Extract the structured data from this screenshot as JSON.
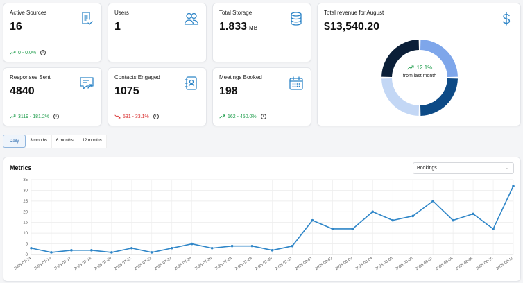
{
  "stats": [
    {
      "title": "Active Sources",
      "value": "16",
      "unit": "",
      "trend": "0 - 0.0%",
      "direction": "up",
      "icon": "form-check-icon"
    },
    {
      "title": "Users",
      "value": "1",
      "unit": "",
      "trend": "",
      "direction": "",
      "icon": "users-icon"
    },
    {
      "title": "Total Storage",
      "value": "1.833",
      "unit": "MB",
      "trend": "",
      "direction": "",
      "icon": "database-icon"
    },
    {
      "title": "Responses Sent",
      "value": "4840",
      "unit": "",
      "trend": "3119 - 181.2%",
      "direction": "up",
      "icon": "message-reply-icon"
    },
    {
      "title": "Contacts Engaged",
      "value": "1075",
      "unit": "",
      "trend": "531 - 33.1%",
      "direction": "down",
      "icon": "contact-book-icon"
    },
    {
      "title": "Meetings Booked",
      "value": "198",
      "unit": "",
      "trend": "162 - 450.0%",
      "direction": "up",
      "icon": "calendar-icon"
    }
  ],
  "revenue": {
    "title": "Total revenue for August",
    "value": "$13,540.20",
    "change": "12.1%",
    "change_label": "from last month",
    "icon": "dollar-icon",
    "segments": [
      {
        "fraction": 0.25,
        "color": "#7ea6ea"
      },
      {
        "fraction": 0.25,
        "color": "#0d4a86"
      },
      {
        "fraction": 0.25,
        "color": "#c3d7f5"
      },
      {
        "fraction": 0.25,
        "color": "#0b1f38"
      }
    ]
  },
  "range_tabs": [
    "Daily",
    "3 months",
    "6 months",
    "12 months"
  ],
  "active_range": "Daily",
  "metrics": {
    "title": "Metrics",
    "select_value": "Bookings"
  },
  "colors": {
    "accent": "#2f86c8",
    "up": "#1f9d4c",
    "down": "#d93030"
  },
  "chart_data": {
    "type": "line",
    "x": [
      "2025-07-14",
      "2025-07-16",
      "2025-07-17",
      "2025-07-18",
      "2025-07-20",
      "2025-07-21",
      "2025-07-22",
      "2025-07-23",
      "2025-07-24",
      "2025-07-25",
      "2025-07-28",
      "2025-07-29",
      "2025-07-30",
      "2025-07-31",
      "2025-08-01",
      "2025-08-02",
      "2025-08-03",
      "2025-08-04",
      "2025-08-05",
      "2025-08-06",
      "2025-08-07",
      "2025-08-08",
      "2025-08-09",
      "2025-08-10",
      "2025-08-11"
    ],
    "values": [
      3,
      1,
      2,
      2,
      1,
      3,
      1,
      3,
      5,
      3,
      4,
      4,
      2,
      4,
      16,
      12,
      12,
      20,
      16,
      18,
      25,
      16,
      19,
      12,
      32
    ],
    "yticks": [
      0,
      5,
      10,
      15,
      20,
      25,
      30,
      35
    ],
    "ylim": [
      0,
      35
    ],
    "grid": true
  }
}
